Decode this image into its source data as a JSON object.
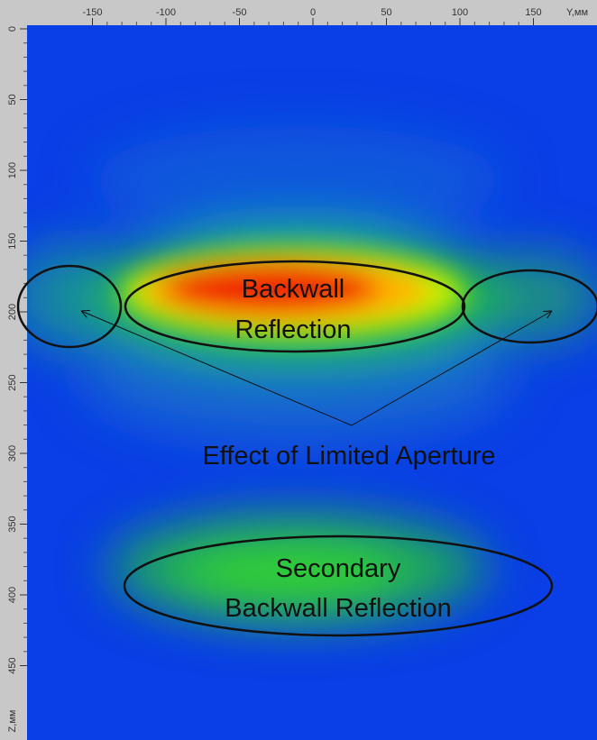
{
  "horizontal_ruler": {
    "label": "Y,мм",
    "ticks": [
      -150,
      -100,
      -50,
      0,
      50,
      100,
      150
    ]
  },
  "vertical_ruler": {
    "label": "Z,мм",
    "ticks": [
      0,
      50,
      100,
      150,
      200,
      250,
      300,
      350,
      400,
      450
    ]
  },
  "annotations": {
    "backwall": [
      "Backwall",
      "Reflection"
    ],
    "aperture": "Effect of Limited Aperture",
    "secondary": [
      "Secondary",
      "Backwall Reflection"
    ]
  }
}
